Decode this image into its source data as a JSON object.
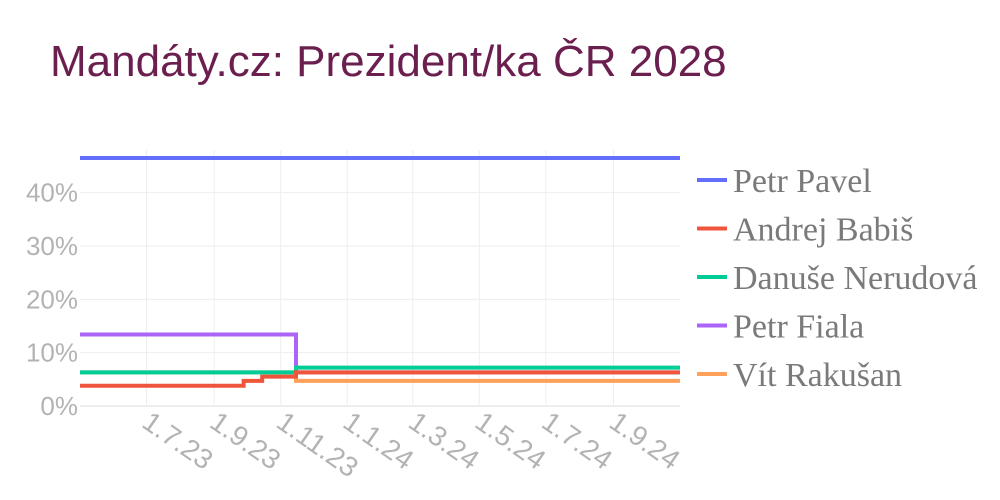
{
  "chart_data": {
    "type": "line",
    "title": "Mandáty.cz: Prezident/ka ČR 2028",
    "xlabel": "",
    "ylabel": "",
    "y_unit": "%",
    "ylim": [
      0,
      48
    ],
    "yticks": [
      0,
      10,
      20,
      30,
      40
    ],
    "ytick_labels": [
      "0%",
      "10%",
      "20%",
      "30%",
      "40%"
    ],
    "xlim": [
      "2023-05-01",
      "2024-11-01"
    ],
    "xticks": [
      "2023-07-01",
      "2023-09-01",
      "2023-11-01",
      "2024-01-01",
      "2024-03-01",
      "2024-05-01",
      "2024-07-01",
      "2024-09-01"
    ],
    "xtick_labels": [
      "1.7.23",
      "1.9.23",
      "1.11.23",
      "1.1.24",
      "1.3.24",
      "1.5.24",
      "1.7.24",
      "1.9.24"
    ],
    "grid": true,
    "legend_position": "right",
    "step": true,
    "series": [
      {
        "name": "Petr Pavel",
        "color": "#636efa",
        "points": [
          [
            "2023-05-01",
            46.5
          ],
          [
            "2024-11-01",
            46.5
          ]
        ]
      },
      {
        "name": "Andrej Babiš",
        "color": "#ef553b",
        "points": [
          [
            "2023-05-01",
            3.8
          ],
          [
            "2023-09-28",
            4.7
          ],
          [
            "2023-10-15",
            5.5
          ],
          [
            "2023-11-15",
            6.3
          ],
          [
            "2024-11-01",
            6.3
          ]
        ]
      },
      {
        "name": "Danuše Nerudová",
        "color": "#00cc96",
        "points": [
          [
            "2023-05-01",
            6.3
          ],
          [
            "2023-11-15",
            7.2
          ],
          [
            "2024-11-01",
            7.2
          ]
        ]
      },
      {
        "name": "Petr Fiala",
        "color": "#ab63fa",
        "points": [
          [
            "2023-05-01",
            13.4
          ],
          [
            "2023-11-15",
            6.3
          ],
          [
            "2024-11-01",
            6.3
          ]
        ]
      },
      {
        "name": "Vít Rakušan",
        "color": "#ffa15a",
        "points": [
          [
            "2023-05-01",
            6.3
          ],
          [
            "2023-11-15",
            4.7
          ],
          [
            "2024-11-01",
            4.7
          ]
        ]
      }
    ]
  }
}
